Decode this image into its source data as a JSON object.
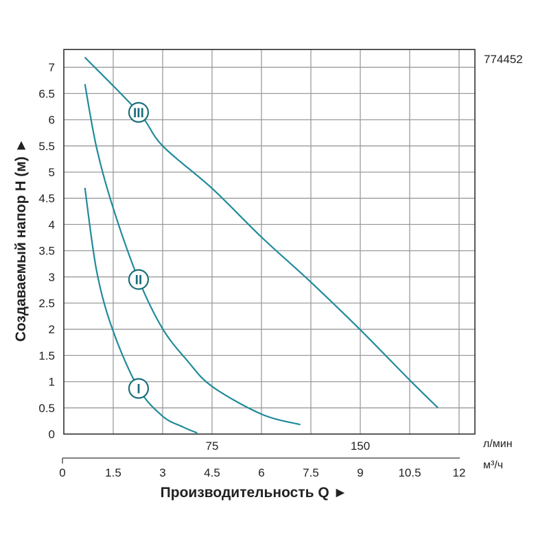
{
  "chart_data": {
    "type": "line",
    "model_code": "774452",
    "ylabel": "Создаваемый напор H (м) ►",
    "xlabel": "Производительность Q ►",
    "x_unit": "м³/ч",
    "x2_unit": "л/мин",
    "xlim": [
      0,
      12.48
    ],
    "ylim": [
      0,
      7.34
    ],
    "x_ticks": [
      "0",
      "1.5",
      "3",
      "4.5",
      "6",
      "7.5",
      "9",
      "10.5",
      "12"
    ],
    "x_tick_values": [
      0,
      1.5,
      3,
      4.5,
      6,
      7.5,
      9,
      10.5,
      12
    ],
    "x2_ticks": [
      {
        "label": "75",
        "x": 4.5
      },
      {
        "label": "150",
        "x": 9
      }
    ],
    "y_ticks": [
      "0",
      "0.5",
      "1",
      "1.5",
      "2",
      "2.5",
      "3",
      "3.5",
      "4",
      "4.5",
      "5",
      "5.5",
      "6",
      "6.5",
      "7"
    ],
    "y_tick_values": [
      0,
      0.5,
      1,
      1.5,
      2,
      2.5,
      3,
      3.5,
      4,
      4.5,
      5,
      5.5,
      6,
      6.5,
      7
    ],
    "grid": true,
    "line_color": "#1f8a9a",
    "series": [
      {
        "name": "I",
        "label_at": [
          2.27,
          0.87
        ],
        "points": [
          [
            0.64,
            4.7
          ],
          [
            1.0,
            3.1
          ],
          [
            1.5,
            1.96
          ],
          [
            2.27,
            0.87
          ],
          [
            3.0,
            0.34
          ],
          [
            3.6,
            0.14
          ],
          [
            4.05,
            0.02
          ]
        ]
      },
      {
        "name": "II",
        "label_at": [
          2.27,
          2.95
        ],
        "points": [
          [
            0.64,
            6.68
          ],
          [
            1.0,
            5.45
          ],
          [
            1.5,
            4.31
          ],
          [
            2.27,
            2.95
          ],
          [
            3.0,
            2.01
          ],
          [
            3.75,
            1.4
          ],
          [
            4.5,
            0.91
          ],
          [
            6.0,
            0.38
          ],
          [
            7.18,
            0.18
          ]
        ]
      },
      {
        "name": "III",
        "label_at": [
          2.27,
          6.14
        ],
        "points": [
          [
            0.64,
            7.19
          ],
          [
            2.27,
            6.14
          ],
          [
            3.0,
            5.5
          ],
          [
            4.5,
            4.69
          ],
          [
            6.0,
            3.76
          ],
          [
            7.5,
            2.9
          ],
          [
            9.0,
            1.99
          ],
          [
            10.5,
            1.03
          ],
          [
            11.36,
            0.5
          ]
        ]
      }
    ]
  }
}
